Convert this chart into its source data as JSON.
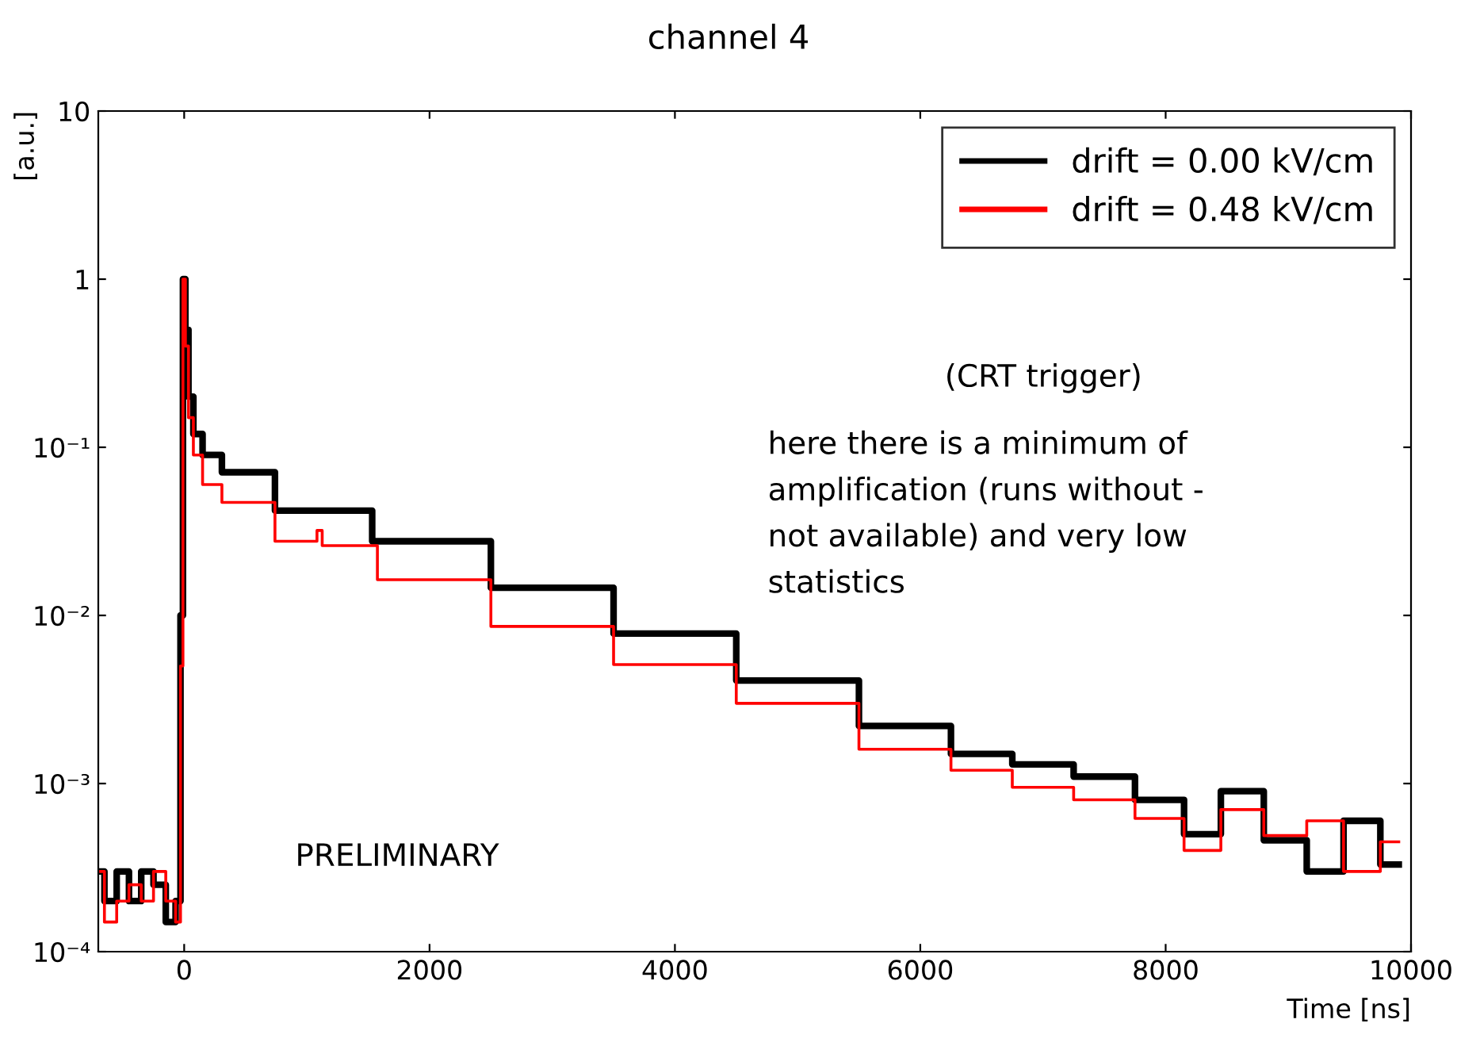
{
  "chart_data": {
    "type": "step",
    "title": "channel 4",
    "xlabel": "Time [ns]",
    "ylabel": "[a.u.]",
    "log": "y",
    "xlim": [
      -700,
      10000
    ],
    "ylim": [
      0.0001,
      10
    ],
    "xticks": [
      0,
      2000,
      4000,
      6000,
      8000,
      10000
    ],
    "yticks": [
      {
        "value": 0.0001,
        "label": "10⁻⁴"
      },
      {
        "value": 0.001,
        "label": "10⁻³"
      },
      {
        "value": 0.01,
        "label": "10⁻²"
      },
      {
        "value": 0.1,
        "label": "10⁻¹"
      },
      1,
      10
    ],
    "legend": "top right",
    "grid": false,
    "series": [
      {
        "name": "drift = 0.00 kV/cm",
        "color": "#000000",
        "x": [
          -700,
          -600,
          -500,
          -400,
          -300,
          -200,
          -100,
          -40,
          -20,
          0,
          20,
          50,
          100,
          200,
          415,
          1065,
          2000,
          3000,
          4000,
          5000,
          6000,
          6500,
          7000,
          7500,
          8000,
          8300,
          8600,
          9000,
          9300,
          9600,
          9900
        ],
        "values": [
          0.0003,
          0.0002,
          0.0003,
          0.0002,
          0.0003,
          0.00025,
          0.00015,
          0.0002,
          0.01,
          1.0,
          0.5,
          0.2,
          0.12,
          0.09,
          0.071,
          0.042,
          0.0276,
          0.0146,
          0.0078,
          0.0041,
          0.0022,
          0.0015,
          0.0013,
          0.0011,
          0.0008,
          0.0005,
          0.0009,
          0.00046,
          0.0003,
          0.0006,
          0.00033
        ]
      },
      {
        "name": "drift = 0.48 kV/cm",
        "color": "#ff0000",
        "x": [
          -700,
          -600,
          -500,
          -400,
          -300,
          -200,
          -100,
          -40,
          -20,
          0,
          20,
          50,
          100,
          200,
          415,
          1065,
          1100,
          1150,
          2000,
          3000,
          4000,
          5000,
          6000,
          6500,
          7000,
          7500,
          8000,
          8300,
          8600,
          9000,
          9300,
          9600,
          9900
        ],
        "values": [
          0.0003,
          0.00015,
          0.0002,
          0.00025,
          0.0002,
          0.0003,
          0.0002,
          0.00015,
          0.005,
          1.0,
          0.4,
          0.15,
          0.09,
          0.06,
          0.047,
          0.0276,
          0.032,
          0.026,
          0.0163,
          0.0086,
          0.0051,
          0.003,
          0.0016,
          0.0012,
          0.00095,
          0.0008,
          0.00062,
          0.0004,
          0.0007,
          0.00049,
          0.0006,
          0.0003,
          0.00045
        ]
      }
    ],
    "annotations": [
      "(CRT trigger)",
      "here there is a minimum of\namplification (runs without -\nnot available) and very low\nstatistics",
      "PRELIMINARY"
    ]
  }
}
